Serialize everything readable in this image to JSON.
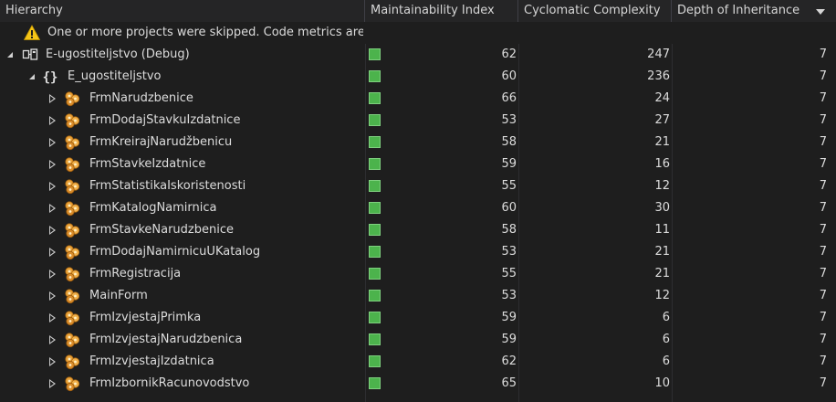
{
  "columns": {
    "hierarchy": "Hierarchy",
    "maintainability": "Maintainability Index",
    "cyclomatic": "Cyclomatic Complexity",
    "inheritance": "Depth of Inheritance"
  },
  "warning": {
    "icon": "warning-icon",
    "text": "One or more projects were skipped. Code metrics are"
  },
  "project": {
    "icon": "project-icon",
    "name": "E-ugostiteljstvo (Debug)",
    "maintainability": "62",
    "cyclomatic": "247",
    "inheritance": "7"
  },
  "namespace": {
    "icon": "namespace-icon",
    "name": "E_ugostiteljstvo",
    "maintainability": "60",
    "cyclomatic": "236",
    "inheritance": "7"
  },
  "classes": [
    {
      "name": "FrmNarudzbenice",
      "maintainability": "66",
      "cyclomatic": "24",
      "inheritance": "7"
    },
    {
      "name": "FrmDodajStavkuIzdatnice",
      "maintainability": "53",
      "cyclomatic": "27",
      "inheritance": "7"
    },
    {
      "name": "FrmKreirajNarudžbenicu",
      "maintainability": "58",
      "cyclomatic": "21",
      "inheritance": "7"
    },
    {
      "name": "FrmStavkeIzdatnice",
      "maintainability": "59",
      "cyclomatic": "16",
      "inheritance": "7"
    },
    {
      "name": "FrmStatistikaIskoristenosti",
      "maintainability": "55",
      "cyclomatic": "12",
      "inheritance": "7"
    },
    {
      "name": "FrmKatalogNamirnica",
      "maintainability": "60",
      "cyclomatic": "30",
      "inheritance": "7"
    },
    {
      "name": "FrmStavkeNarudzbenice",
      "maintainability": "58",
      "cyclomatic": "11",
      "inheritance": "7"
    },
    {
      "name": "FrmDodajNamirnicuUKatalog",
      "maintainability": "53",
      "cyclomatic": "21",
      "inheritance": "7"
    },
    {
      "name": "FrmRegistracija",
      "maintainability": "55",
      "cyclomatic": "21",
      "inheritance": "7"
    },
    {
      "name": "MainForm",
      "maintainability": "53",
      "cyclomatic": "12",
      "inheritance": "7"
    },
    {
      "name": "FrmIzvjestajPrimka",
      "maintainability": "59",
      "cyclomatic": "6",
      "inheritance": "7"
    },
    {
      "name": "FrmIzvjestajNarudzbenica",
      "maintainability": "59",
      "cyclomatic": "6",
      "inheritance": "7"
    },
    {
      "name": "FrmIzvjestajIzdatnica",
      "maintainability": "62",
      "cyclomatic": "6",
      "inheritance": "7"
    },
    {
      "name": "FrmIzbornikRacunovodstvo",
      "maintainability": "65",
      "cyclomatic": "10",
      "inheritance": "7"
    }
  ],
  "colors": {
    "background": "#1e1e1e",
    "header": "#252526",
    "good_metric": "#4cb34c"
  }
}
